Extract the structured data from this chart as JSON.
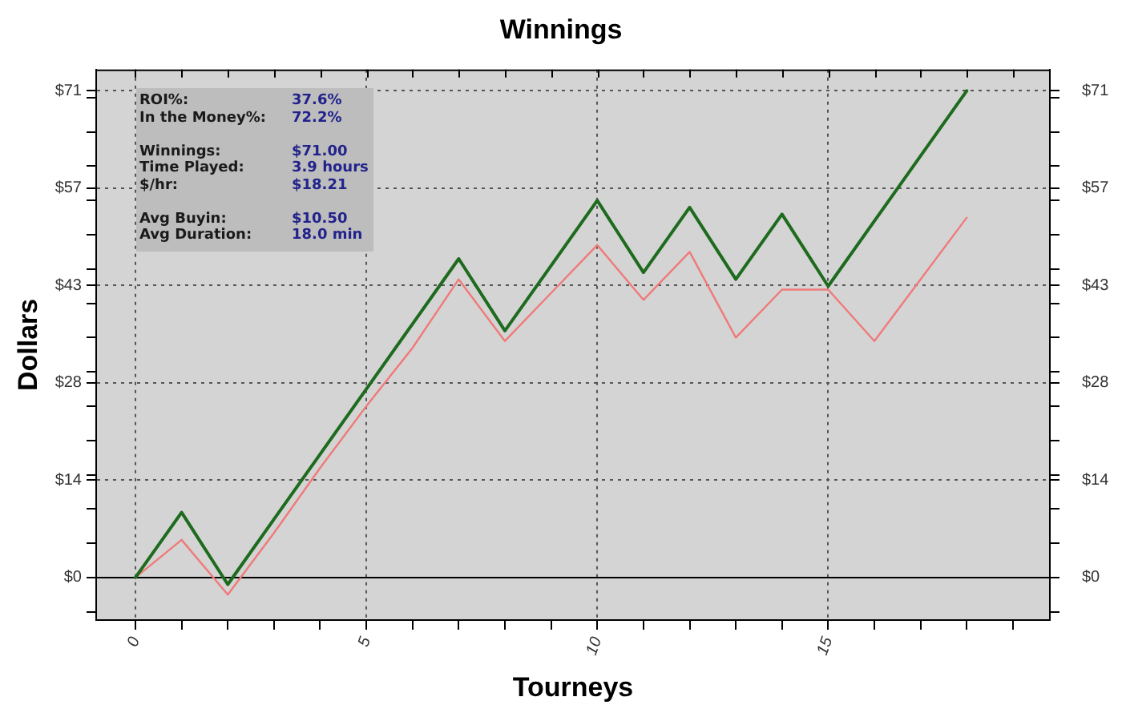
{
  "chart_data": {
    "type": "line",
    "title": "Winnings",
    "xlabel": "Tourneys",
    "ylabel": "Dollars",
    "x": [
      0,
      1,
      2,
      3,
      4,
      5,
      6,
      7,
      8,
      9,
      10,
      11,
      12,
      13,
      14,
      15,
      16,
      17,
      18
    ],
    "series": [
      {
        "color": "#1e6b1e",
        "values": [
          0,
          9.5,
          -1,
          8.5,
          18,
          27.5,
          37,
          46.5,
          36,
          45.5,
          55,
          44.5,
          54,
          43.5,
          53,
          42.5,
          52,
          61.5,
          71
        ]
      },
      {
        "color": "#f07a7a",
        "values": [
          0,
          5.5,
          -2.5,
          6.5,
          16,
          25,
          33.5,
          43.5,
          34.5,
          41.5,
          48.5,
          40.5,
          47.5,
          35,
          42,
          42,
          34.5,
          43.5,
          52.5
        ]
      }
    ],
    "xlim": [
      -0.85,
      19.8
    ],
    "xticks": [
      0,
      {
        "value": 1,
        "label": null
      },
      {
        "value": 2,
        "label": null
      },
      {
        "value": 3,
        "label": null
      },
      {
        "value": 4,
        "label": null
      },
      5,
      {
        "value": 6,
        "label": null
      },
      {
        "value": 7,
        "label": null
      },
      {
        "value": 8,
        "label": null
      },
      {
        "value": 9,
        "label": null
      },
      10,
      {
        "value": 11,
        "label": null
      },
      {
        "value": 12,
        "label": null
      },
      {
        "value": 13,
        "label": null
      },
      {
        "value": 14,
        "label": null
      },
      15,
      {
        "value": 16,
        "label": null
      },
      {
        "value": 17,
        "label": null
      },
      {
        "value": 18,
        "label": null
      },
      {
        "value": 19,
        "label": null
      }
    ],
    "ylim": [
      -6.2,
      74.1
    ],
    "yticks": [
      {
        "value": -5,
        "label": null
      },
      {
        "value": 0,
        "label": "$0"
      },
      {
        "value": 5,
        "label": null
      },
      {
        "value": 10,
        "label": null
      },
      {
        "value": 14.2,
        "label": "$14"
      },
      {
        "value": 15,
        "label": null
      },
      {
        "value": 20,
        "label": null
      },
      {
        "value": 25,
        "label": null
      },
      {
        "value": 28.4,
        "label": "$28"
      },
      {
        "value": 30,
        "label": null
      },
      {
        "value": 35,
        "label": null
      },
      {
        "value": 40,
        "label": null
      },
      {
        "value": 42.6,
        "label": "$43"
      },
      {
        "value": 45,
        "label": null
      },
      {
        "value": 50,
        "label": null
      },
      {
        "value": 55,
        "label": null
      },
      {
        "value": 56.8,
        "label": "$57"
      },
      {
        "value": 60,
        "label": null
      },
      {
        "value": 65,
        "label": null
      },
      {
        "value": 70,
        "label": null
      },
      {
        "value": 71,
        "label": "$71"
      }
    ],
    "y2lim": [
      -6.2,
      74.1
    ],
    "y2ticks": [
      {
        "value": -5,
        "label": null
      },
      {
        "value": 0,
        "label": "$0"
      },
      {
        "value": 5,
        "label": null
      },
      {
        "value": 10,
        "label": null
      },
      {
        "value": 14.2,
        "label": "$14"
      },
      {
        "value": 15,
        "label": null
      },
      {
        "value": 20,
        "label": null
      },
      {
        "value": 25,
        "label": null
      },
      {
        "value": 28.4,
        "label": "$28"
      },
      {
        "value": 30,
        "label": null
      },
      {
        "value": 35,
        "label": null
      },
      {
        "value": 40,
        "label": null
      },
      {
        "value": 42.6,
        "label": "$43"
      },
      {
        "value": 45,
        "label": null
      },
      {
        "value": 50,
        "label": null
      },
      {
        "value": 55,
        "label": null
      },
      {
        "value": 56.8,
        "label": "$57"
      },
      {
        "value": 60,
        "label": null
      },
      {
        "value": 65,
        "label": null
      },
      {
        "value": 70,
        "label": null
      },
      {
        "value": 71,
        "label": "$71"
      }
    ],
    "ref_lines": [
      {
        "axis": "y",
        "value": 0,
        "color": "#000000"
      }
    ],
    "annotations": [
      "ROI%:\t37.6%\nIn the Money%:\t72.2%",
      "Winnings:\t$71.00\nTime Played:\t3.9 hours\n$/hr:\t$18.21",
      "Avg Buyin:\t$10.50\nAvg Duration:\t18.0 min"
    ],
    "grid": true,
    "legend": false,
    "marker": "none"
  }
}
